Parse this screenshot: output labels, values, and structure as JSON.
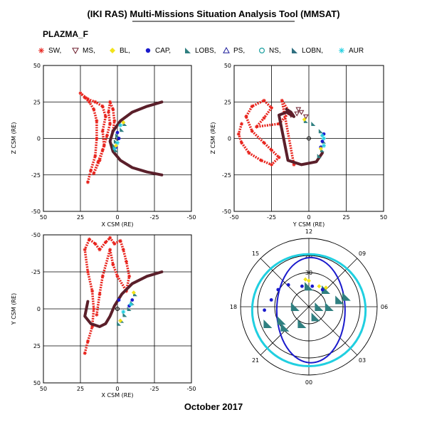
{
  "header": {
    "title": "(IKI RAS) Multi-Missions Situation Analysis Tool (MMSAT)",
    "mission": "PLAZMA_F",
    "date": "October 2017"
  },
  "legend": [
    {
      "label": "SW,",
      "color": "#e8231c",
      "symbol": "asterisk"
    },
    {
      "label": "MS,",
      "color": "#6b1c2b",
      "symbol": "triangle-down-open"
    },
    {
      "label": "BL,",
      "color": "#f2e31a",
      "symbol": "diamond"
    },
    {
      "label": "CAP,",
      "color": "#1a1acc",
      "symbol": "circle-filled"
    },
    {
      "label": "LOBS,",
      "color": "#2f7f80",
      "symbol": "flag"
    },
    {
      "label": "PS,",
      "color": "#1a1a99",
      "symbol": "triangle-up-open"
    },
    {
      "label": "NS,",
      "color": "#1a9f9f",
      "symbol": "circle-open"
    },
    {
      "label": "LOBN,",
      "color": "#2f6f80",
      "symbol": "flag"
    },
    {
      "label": "AUR",
      "color": "#20cfe0",
      "symbol": "asterisk"
    }
  ],
  "colors": {
    "sw": "#e8231c",
    "ms": "#6b1c2b",
    "bl": "#f2e31a",
    "cap": "#1a1acc",
    "lobs": "#2f7f80",
    "ns": "#1a9f9f",
    "aur": "#20cfe0",
    "boundary": "#5a1f2a",
    "grid": "#000000"
  },
  "chart_data": [
    {
      "type": "scatter",
      "xlabel": "X CSM (RE)",
      "ylabel": "Z CSM (RE)",
      "xlim": [
        50,
        -50
      ],
      "ylim": [
        -50,
        50
      ],
      "xticks": [
        "50",
        "25",
        "0",
        "-25",
        "-50"
      ],
      "yticks": [
        "-50",
        "-25",
        "0",
        "25",
        "50"
      ],
      "grid": true,
      "series": [
        {
          "key": "sw",
          "points": [
            [
              20,
              -30
            ],
            [
              18,
              -22
            ],
            [
              15,
              -12
            ],
            [
              14,
              0
            ],
            [
              14,
              12
            ],
            [
              16,
              20
            ],
            [
              19,
              25
            ],
            [
              22,
              28
            ],
            [
              25,
              31
            ],
            [
              20,
              27
            ],
            [
              15,
              25
            ],
            [
              10,
              22
            ],
            [
              8,
              15
            ],
            [
              10,
              5
            ],
            [
              9,
              -5
            ],
            [
              12,
              -15
            ],
            [
              16,
              -24
            ],
            [
              13,
              -16
            ],
            [
              10,
              -8
            ],
            [
              7,
              2
            ],
            [
              5,
              10
            ],
            [
              6,
              18
            ],
            [
              5,
              25
            ],
            [
              3,
              20
            ],
            [
              2,
              12
            ],
            [
              3,
              5
            ]
          ]
        },
        {
          "key": "boundary",
          "points": [
            [
              -30,
              25
            ],
            [
              -20,
              22
            ],
            [
              -10,
              18
            ],
            [
              -2,
              12
            ],
            [
              3,
              5
            ],
            [
              5,
              -2
            ],
            [
              3,
              -9
            ],
            [
              -2,
              -15
            ],
            [
              -10,
              -20
            ],
            [
              -20,
              -23
            ],
            [
              -30,
              -25
            ]
          ]
        },
        {
          "key": "lobs",
          "points": [
            [
              -5,
              10
            ],
            [
              -3,
              6
            ],
            [
              0,
              2
            ],
            [
              1,
              -2
            ],
            [
              2,
              -5
            ],
            [
              1,
              -8
            ]
          ]
        },
        {
          "key": "cap",
          "points": [
            [
              0,
              4
            ],
            [
              -1,
              0
            ],
            [
              1,
              -6
            ]
          ]
        },
        {
          "key": "aur",
          "points": [
            [
              -2,
              9
            ],
            [
              0,
              -3
            ],
            [
              2,
              -7
            ]
          ]
        },
        {
          "key": "bl",
          "points": [
            [
              -4,
              11
            ],
            [
              1,
              -5
            ]
          ]
        }
      ]
    },
    {
      "type": "scatter",
      "xlabel": "Y CSM (RE)",
      "ylabel": "Z CSM (RE)",
      "xlim": [
        -50,
        50
      ],
      "ylim": [
        -50,
        50
      ],
      "xticks": [
        "-50",
        "-25",
        "0",
        "25",
        "50"
      ],
      "yticks": [
        "-50",
        "-25",
        "0",
        "25",
        "50"
      ],
      "grid": true,
      "series": [
        {
          "key": "sw",
          "points": [
            [
              -45,
              10
            ],
            [
              -47,
              3
            ],
            [
              -45,
              -3
            ],
            [
              -40,
              -10
            ],
            [
              -32,
              -15
            ],
            [
              -25,
              -18
            ],
            [
              -20,
              -13
            ],
            [
              -25,
              -8
            ],
            [
              -30,
              -3
            ],
            [
              -38,
              5
            ],
            [
              -42,
              15
            ],
            [
              -38,
              22
            ],
            [
              -30,
              26
            ],
            [
              -25,
              21
            ],
            [
              -30,
              14
            ],
            [
              -35,
              8
            ],
            [
              -20,
              10
            ],
            [
              -13,
              18
            ],
            [
              -18,
              26
            ],
            [
              -10,
              -18
            ]
          ]
        },
        {
          "key": "boundary",
          "points": [
            [
              -15,
              20
            ],
            [
              -12,
              18
            ],
            [
              -10,
              15
            ],
            [
              -15,
              18
            ],
            [
              -20,
              16
            ],
            [
              -14,
              -15
            ],
            [
              -5,
              -18
            ],
            [
              5,
              -16
            ],
            [
              9,
              -10
            ]
          ]
        },
        {
          "key": "ms",
          "points": [
            [
              -7,
              20
            ],
            [
              -5,
              18
            ],
            [
              -2,
              15
            ],
            [
              -8,
              17
            ],
            [
              -12,
              16
            ]
          ]
        },
        {
          "key": "lobs",
          "points": [
            [
              -2,
              12
            ],
            [
              3,
              10
            ],
            [
              8,
              5
            ],
            [
              10,
              -2
            ],
            [
              9,
              -8
            ],
            [
              7,
              -12
            ]
          ]
        },
        {
          "key": "cap",
          "points": [
            [
              9,
              -2
            ],
            [
              10,
              3
            ],
            [
              8,
              -6
            ]
          ]
        },
        {
          "key": "aur",
          "points": [
            [
              10,
              0
            ],
            [
              10,
              -5
            ],
            [
              9,
              2
            ]
          ]
        },
        {
          "key": "bl",
          "points": [
            [
              -3,
              13
            ],
            [
              8,
              -7
            ]
          ]
        }
      ]
    },
    {
      "type": "scatter",
      "xlabel": "X CSM (RE)",
      "ylabel": "Y CSM (RE)",
      "xlim": [
        50,
        -50
      ],
      "ylim": [
        -50,
        50
      ],
      "yinverted": true,
      "xticks": [
        "50",
        "25",
        "0",
        "-25",
        "-50"
      ],
      "yticks": [
        "-50",
        "-25",
        "0",
        "25",
        "50"
      ],
      "grid": true,
      "series": [
        {
          "key": "sw",
          "points": [
            [
              22,
              30
            ],
            [
              20,
              22
            ],
            [
              17,
              12
            ],
            [
              16,
              0
            ],
            [
              17,
              -12
            ],
            [
              20,
              -25
            ],
            [
              22,
              -40
            ],
            [
              19,
              -47
            ],
            [
              15,
              -44
            ],
            [
              12,
              -40
            ],
            [
              8,
              -45
            ],
            [
              5,
              -48
            ],
            [
              2,
              -44
            ],
            [
              -2,
              -46
            ],
            [
              -4,
              -40
            ],
            [
              -6,
              -32
            ],
            [
              -8,
              -22
            ],
            [
              -6,
              -12
            ],
            [
              0,
              -22
            ],
            [
              3,
              -30
            ],
            [
              5,
              -40
            ],
            [
              10,
              -22
            ],
            [
              12,
              -10
            ],
            [
              14,
              4
            ]
          ]
        },
        {
          "key": "boundary",
          "points": [
            [
              -30,
              -25
            ],
            [
              -20,
              -22
            ],
            [
              -10,
              -17
            ],
            [
              -3,
              -10
            ],
            [
              2,
              -2
            ],
            [
              5,
              5
            ],
            [
              8,
              10
            ],
            [
              12,
              12
            ],
            [
              18,
              10
            ],
            [
              22,
              5
            ],
            [
              20,
              -5
            ]
          ]
        },
        {
          "key": "lobs",
          "points": [
            [
              -12,
              -10
            ],
            [
              -10,
              -4
            ],
            [
              -8,
              0
            ],
            [
              -5,
              4
            ],
            [
              -3,
              8
            ],
            [
              -1,
              10
            ]
          ]
        },
        {
          "key": "cap",
          "points": [
            [
              -10,
              -6
            ],
            [
              -8,
              -2
            ],
            [
              -1,
              -6
            ]
          ]
        },
        {
          "key": "aur",
          "points": [
            [
              -9,
              -3
            ],
            [
              -4,
              2
            ]
          ]
        },
        {
          "key": "bl",
          "points": [
            [
              -11,
              -11
            ],
            [
              -2,
              8
            ]
          ]
        }
      ]
    },
    {
      "type": "polar",
      "angle_labels": [
        "12",
        "15",
        "18",
        "21",
        "00",
        "03",
        "06",
        "09"
      ],
      "radius_labels": [
        "20",
        "30"
      ],
      "series": [
        {
          "key": "cap",
          "shape": "oval",
          "cx": 0.03,
          "cy": 0.05,
          "rx": 0.5,
          "ry": 0.77
        },
        {
          "key": "aur",
          "shape": "oval",
          "cx": 0.0,
          "cy": 0.05,
          "rx": 0.83,
          "ry": 0.82
        },
        {
          "key": "lobs",
          "points": [
            [
              -0.6,
              0.25
            ],
            [
              -0.35,
              0.3
            ],
            [
              -0.1,
              0.25
            ],
            [
              0.1,
              0.15
            ],
            [
              0.3,
              0.0
            ],
            [
              0.45,
              -0.1
            ],
            [
              0.55,
              -0.15
            ],
            [
              0.0,
              -0.3
            ],
            [
              -0.2,
              0.0
            ],
            [
              -0.4,
              0.2
            ],
            [
              0.25,
              -0.25
            ],
            [
              0.15,
              0.0
            ]
          ]
        },
        {
          "key": "cap2",
          "points": [
            [
              -0.55,
              -0.1
            ],
            [
              -0.45,
              -0.25
            ],
            [
              -0.3,
              -0.32
            ],
            [
              -0.1,
              -0.3
            ],
            [
              0.05,
              -0.3
            ],
            [
              0.2,
              -0.25
            ],
            [
              -0.65,
              0.05
            ]
          ]
        },
        {
          "key": "bl",
          "points": [
            [
              0.0,
              -0.38
            ],
            [
              0.15,
              -0.3
            ],
            [
              0.25,
              -0.28
            ],
            [
              -0.05,
              -0.4
            ]
          ]
        }
      ]
    }
  ]
}
